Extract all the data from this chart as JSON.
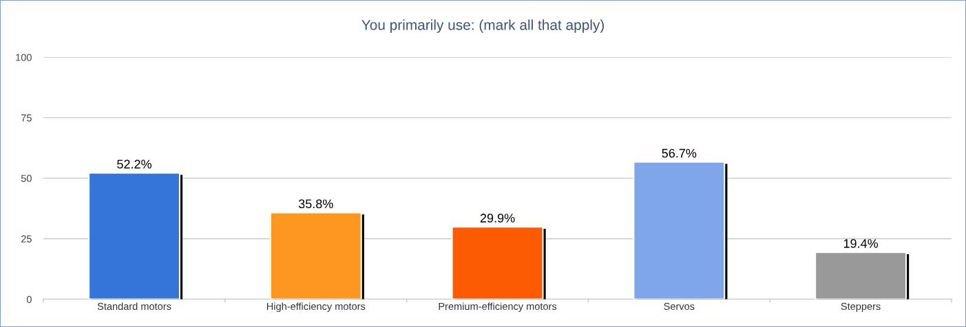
{
  "chart_data": {
    "type": "bar",
    "title": "You primarily use: (mark all that apply)",
    "categories": [
      "Standard motors",
      "High-efficiency motors",
      "Premium-efficiency motors",
      "Servos",
      "Steppers"
    ],
    "values": [
      52.2,
      35.8,
      29.9,
      56.7,
      19.4
    ],
    "value_labels": [
      "52.2%",
      "35.8%",
      "29.9%",
      "56.7%",
      "19.4%"
    ],
    "colors": [
      "#3575d9",
      "#fd971f",
      "#fd5a04",
      "#7ea6e8",
      "#999999"
    ],
    "ylim": [
      0,
      100
    ],
    "yticks": [
      0,
      25,
      50,
      75,
      100
    ],
    "grid": "y",
    "legend": false
  }
}
